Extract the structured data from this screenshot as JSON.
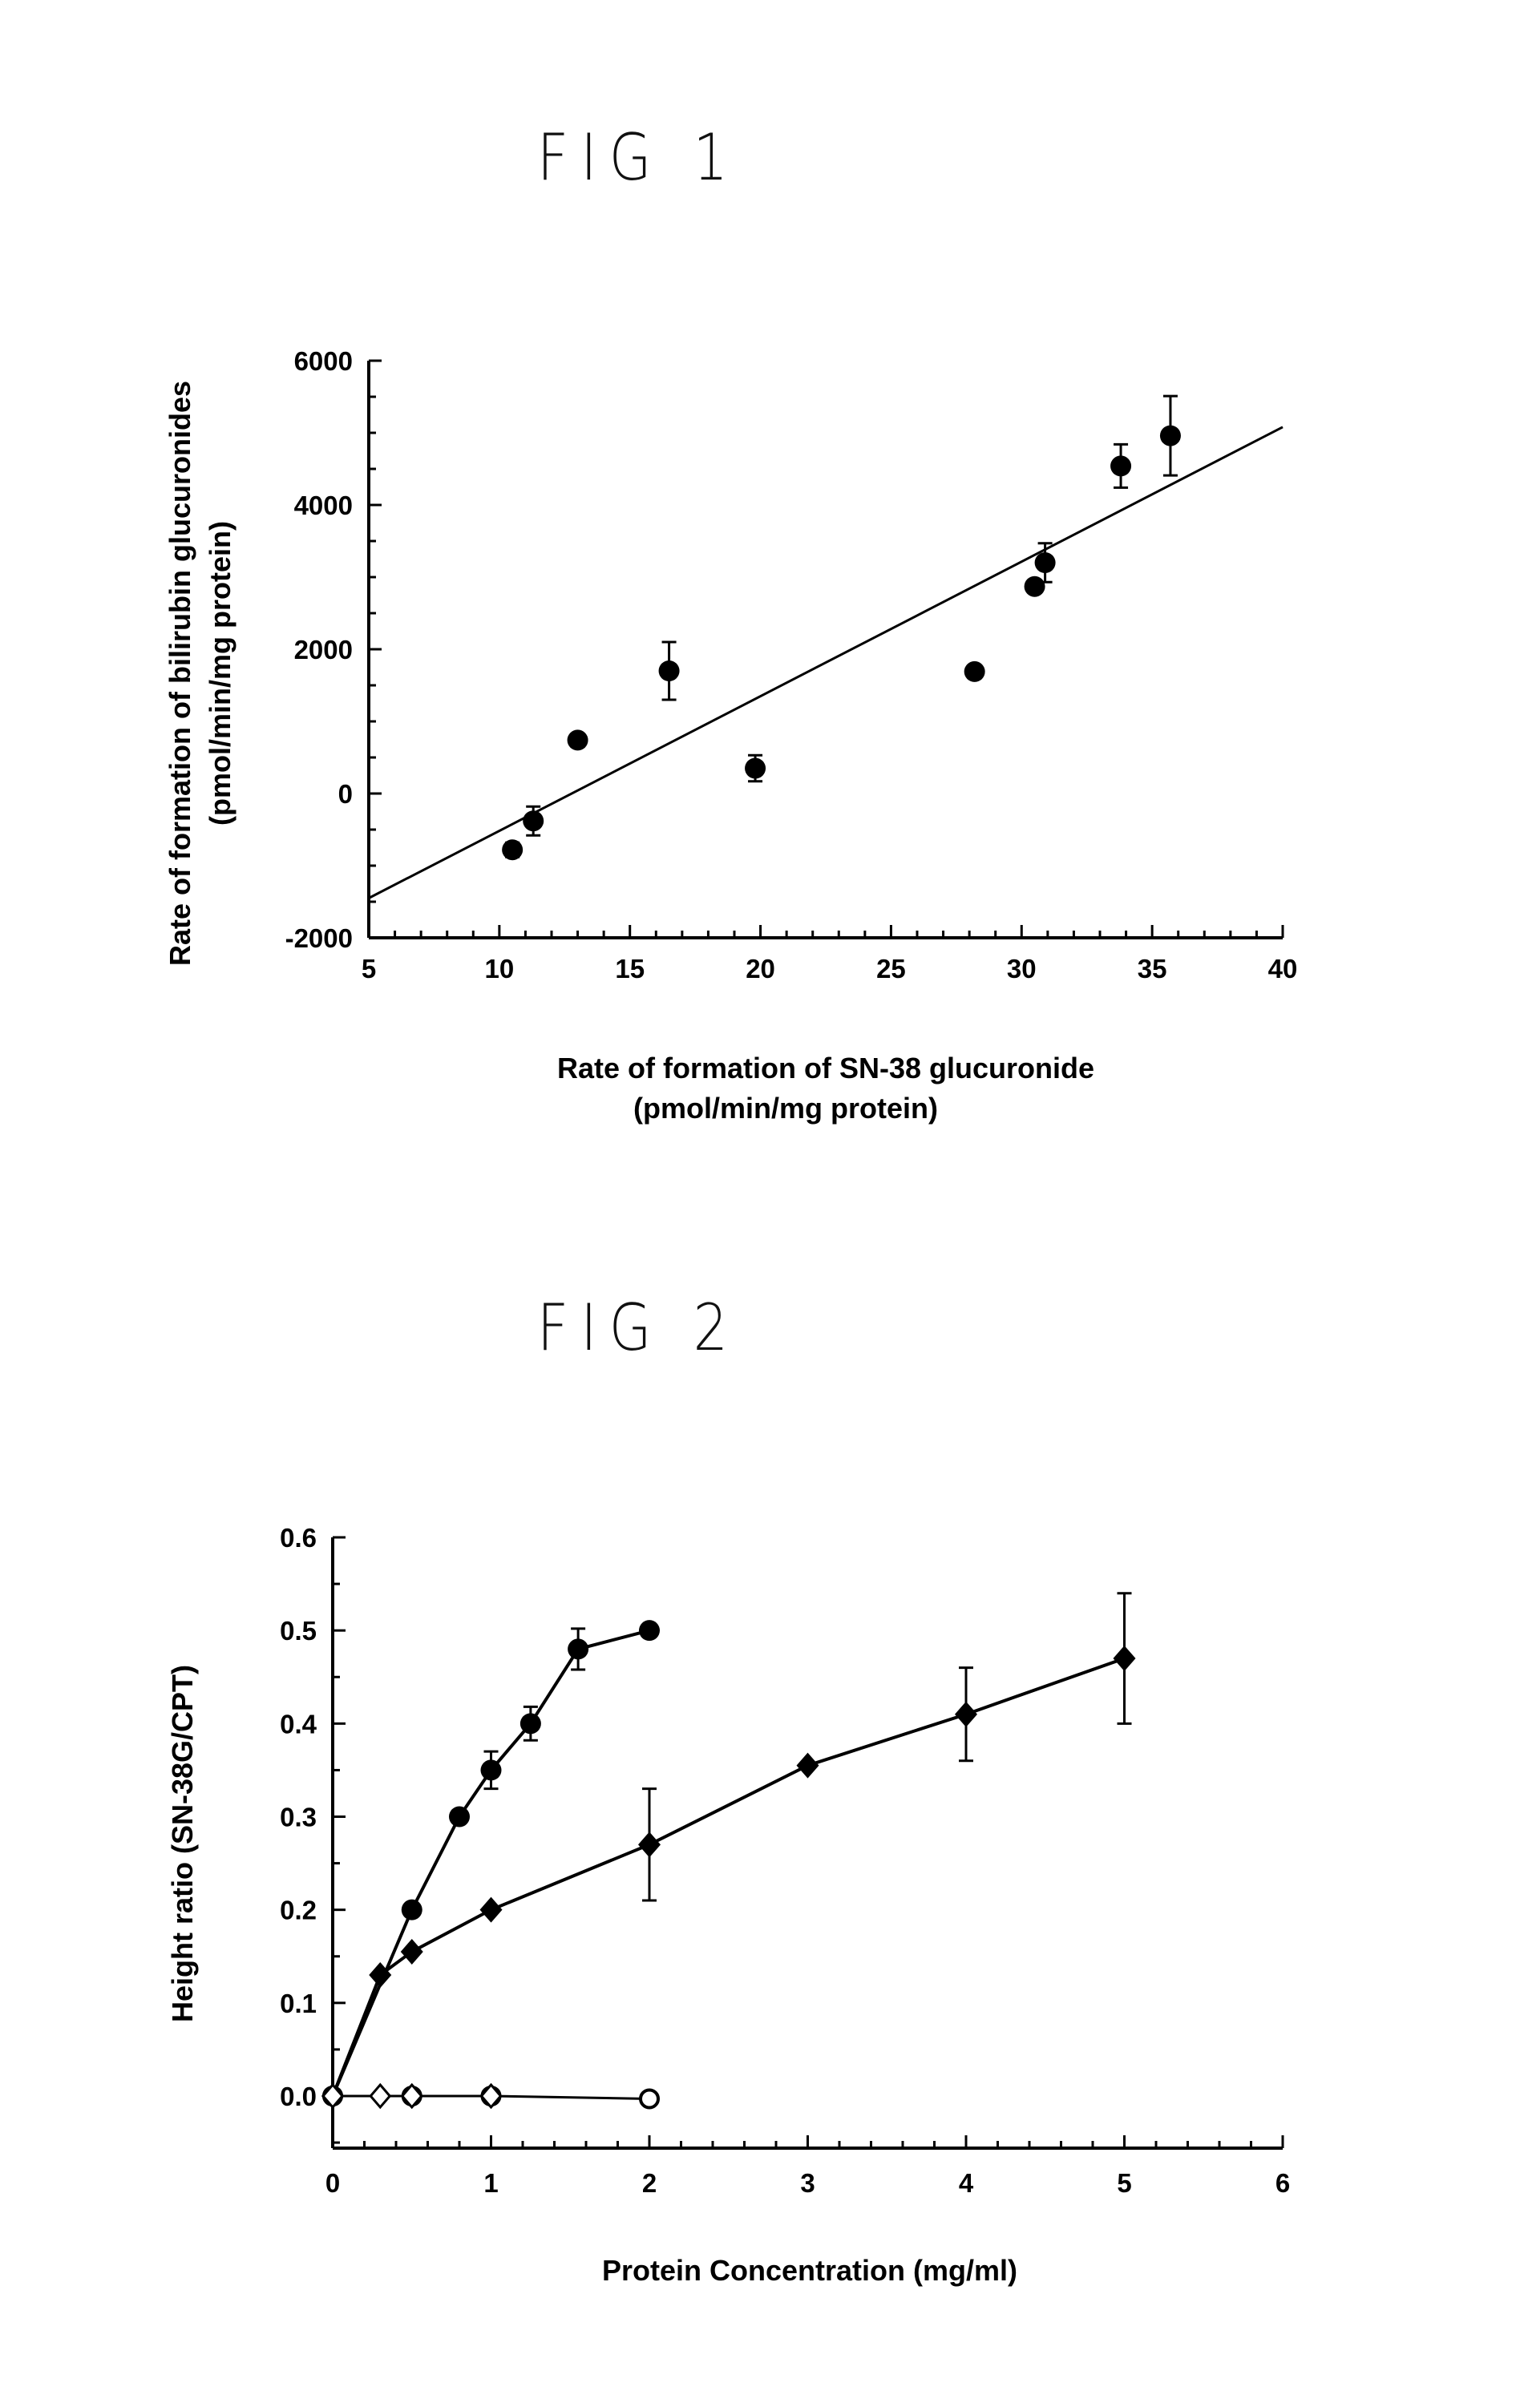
{
  "figures": {
    "fig1": "FIG 1",
    "fig2": "FIG 2"
  },
  "chart_data": [
    {
      "type": "scatter",
      "title": "FIG 1",
      "xlabel_lines": [
        "Rate of formation of SN-38 glucuronide",
        "(pmol/min/mg protein)"
      ],
      "ylabel_lines": [
        "Rate of formation of bilirubin glucuronides",
        "(pmol/min/mg protein)"
      ],
      "xlim": [
        5,
        40
      ],
      "ylim": [
        -2000,
        6000
      ],
      "xticks": [
        5,
        10,
        15,
        20,
        25,
        30,
        35,
        40
      ],
      "yticks": [
        -2000,
        0,
        2000,
        4000,
        6000
      ],
      "grid": false,
      "points": [
        {
          "x": 10.5,
          "y": -780,
          "err": 100
        },
        {
          "x": 11.3,
          "y": -380,
          "err": 200
        },
        {
          "x": 13.0,
          "y": 740,
          "err": 0
        },
        {
          "x": 16.5,
          "y": 1700,
          "err": 400
        },
        {
          "x": 19.8,
          "y": 350,
          "err": 180
        },
        {
          "x": 28.2,
          "y": 1690,
          "err": 0
        },
        {
          "x": 30.5,
          "y": 2870,
          "err": 0
        },
        {
          "x": 30.9,
          "y": 3200,
          "err": 270
        },
        {
          "x": 33.8,
          "y": 4540,
          "err": 300
        },
        {
          "x": 35.7,
          "y": 4960,
          "err": 550
        }
      ],
      "fit_line": {
        "x": [
          5,
          40
        ],
        "y": [
          -1450,
          5080
        ]
      }
    },
    {
      "type": "line",
      "title": "FIG 2",
      "xlabel": "Protein Concentration (mg/ml)",
      "ylabel": "Height ratio (SN-38G/CPT)",
      "xlim": [
        0,
        6
      ],
      "ylim": [
        -0.05,
        0.6
      ],
      "xticks": [
        0,
        1,
        2,
        3,
        4,
        5,
        6
      ],
      "yticks": [
        0.0,
        0.1,
        0.2,
        0.3,
        0.4,
        0.5,
        0.6
      ],
      "ytick_labels": [
        "0.0",
        "0.1",
        "0.2",
        "0.3",
        "0.4",
        "0.5",
        "0.6"
      ],
      "grid": false,
      "series": [
        {
          "marker": "circle-filled",
          "x": [
            0,
            0.5,
            0.8,
            1.0,
            1.25,
            1.55,
            2.0
          ],
          "y": [
            0.0,
            0.2,
            0.3,
            0.35,
            0.4,
            0.48,
            0.5
          ],
          "err": [
            0,
            0,
            0,
            0.02,
            0.018,
            0.022,
            0
          ]
        },
        {
          "marker": "diamond-filled",
          "x": [
            0,
            0.3,
            0.5,
            1.0,
            2.0,
            3.0,
            4.0,
            5.0
          ],
          "y": [
            0.0,
            0.13,
            0.155,
            0.2,
            0.27,
            0.355,
            0.41,
            0.47
          ],
          "err": [
            0,
            0,
            0,
            0,
            0.06,
            0,
            0.05,
            0.07
          ]
        },
        {
          "marker": "circle-open",
          "x": [
            0,
            0.5,
            1.0,
            2.0
          ],
          "y": [
            0.0,
            0.0,
            0.0,
            -0.003
          ],
          "err": [
            0,
            0,
            0,
            0
          ]
        },
        {
          "marker": "diamond-open",
          "x": [
            0,
            0.3,
            0.5,
            1.0
          ],
          "y": [
            0.0,
            0.0,
            0.0,
            0.0
          ],
          "err": [
            0,
            0,
            0,
            0
          ]
        }
      ]
    }
  ]
}
